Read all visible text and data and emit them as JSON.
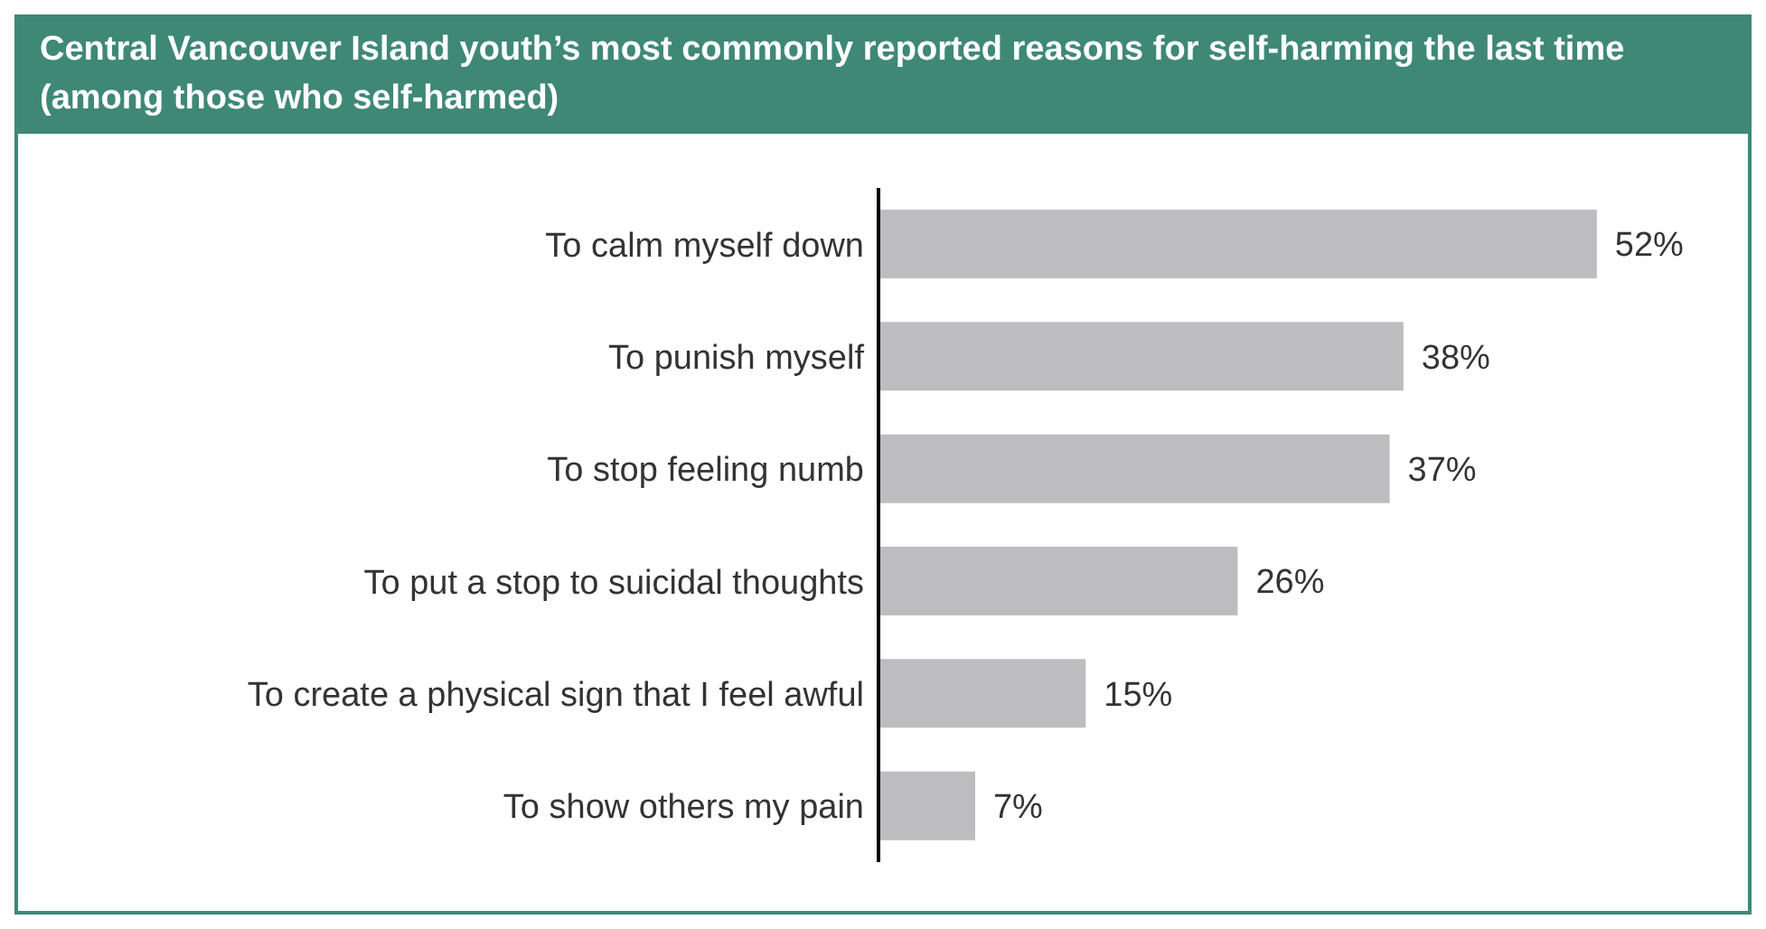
{
  "chart_data": {
    "type": "bar",
    "orientation": "horizontal",
    "title": "Central Vancouver Island youth’s most commonly reported reasons for self-harming the last time (among those who self-harmed)",
    "categories": [
      "To calm myself down",
      "To punish myself",
      "To stop feeling numb",
      "To put a stop to suicidal thoughts",
      "To create a physical sign that I feel awful",
      "To show others my pain"
    ],
    "values": [
      52,
      38,
      37,
      26,
      15,
      7
    ],
    "value_labels": [
      "52%",
      "38%",
      "37%",
      "26%",
      "15%",
      "7%"
    ],
    "color": "#bdbdc0",
    "grid": false,
    "legend": false
  }
}
